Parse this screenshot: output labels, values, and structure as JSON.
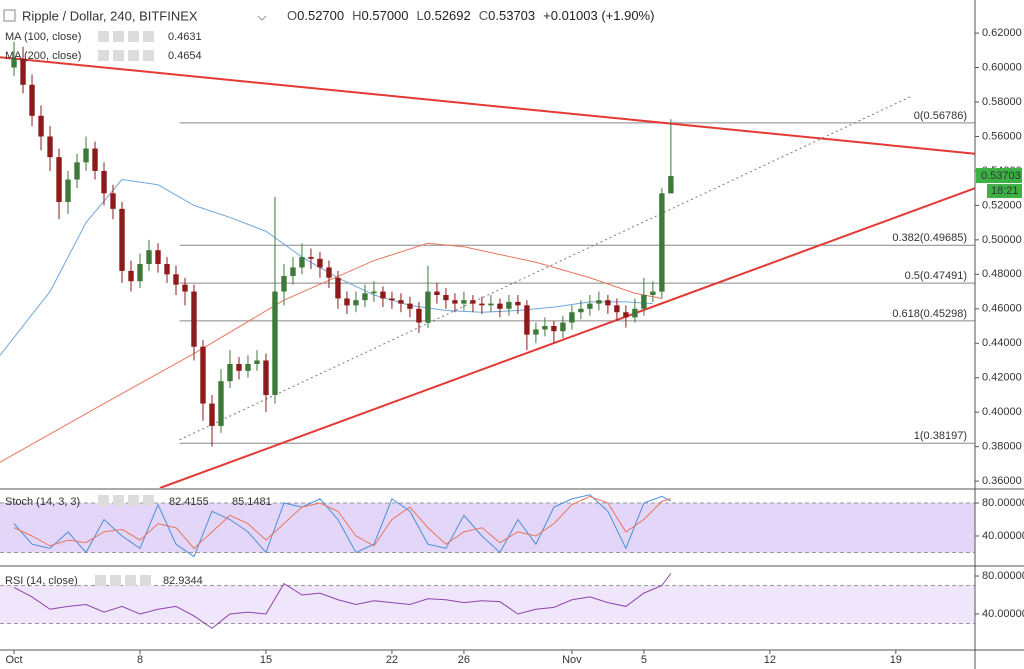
{
  "chart_data": [
    {
      "type": "candlestick",
      "title": "Ripple / Dollar, 240, BITFINEX",
      "ohlc": [
        {
          "key": "O",
          "value": "0.52700"
        },
        {
          "key": "H",
          "value": "0.57000"
        },
        {
          "key": "L",
          "value": "0.52692"
        },
        {
          "key": "C",
          "value": "0.53703"
        }
      ],
      "change": "+0.01003 (+1.90%)",
      "x": [
        0,
        0.5,
        1,
        1.5,
        2,
        2.5,
        3,
        3.5,
        4,
        4.5,
        5,
        5.5,
        6,
        6.5,
        7,
        7.5,
        8,
        8.5,
        9,
        9.5,
        10,
        10.5,
        11,
        11.5,
        12,
        12.5,
        13,
        13.5,
        14,
        14.5,
        15,
        15.5,
        16,
        16.5,
        17,
        17.5,
        18,
        18.5,
        19,
        19.5,
        20,
        20.5,
        21,
        21.5,
        22,
        22.5,
        23,
        23.5,
        24,
        24.5,
        25,
        25.5,
        26,
        26.5,
        27,
        27.5,
        28,
        28.5,
        29,
        29.5,
        30,
        30.5,
        31,
        31.5,
        32,
        32.5,
        33,
        33.5,
        34,
        34.5,
        35,
        35.5,
        36,
        36.5
      ],
      "open": [
        0.6,
        0.605,
        0.59,
        0.572,
        0.56,
        0.548,
        0.522,
        0.535,
        0.545,
        0.553,
        0.54,
        0.527,
        0.518,
        0.482,
        0.476,
        0.486,
        0.494,
        0.486,
        0.48,
        0.474,
        0.47,
        0.438,
        0.405,
        0.392,
        0.418,
        0.428,
        0.424,
        0.428,
        0.43,
        0.41,
        0.47,
        0.479,
        0.484,
        0.49,
        0.489,
        0.484,
        0.478,
        0.466,
        0.462,
        0.465,
        0.469,
        0.47,
        0.466,
        0.465,
        0.463,
        0.46,
        0.452,
        0.47,
        0.468,
        0.465,
        0.463,
        0.465,
        0.463,
        0.462,
        0.463,
        0.46,
        0.464,
        0.462,
        0.445,
        0.448,
        0.45,
        0.447,
        0.452,
        0.458,
        0.46,
        0.463,
        0.465,
        0.462,
        0.458,
        0.455,
        0.46,
        0.468,
        0.47,
        0.527
      ],
      "high": [
        0.615,
        0.612,
        0.596,
        0.578,
        0.566,
        0.553,
        0.54,
        0.55,
        0.56,
        0.557,
        0.545,
        0.532,
        0.522,
        0.488,
        0.492,
        0.5,
        0.498,
        0.49,
        0.485,
        0.478,
        0.474,
        0.442,
        0.41,
        0.425,
        0.436,
        0.432,
        0.433,
        0.436,
        0.434,
        0.525,
        0.486,
        0.49,
        0.498,
        0.495,
        0.493,
        0.488,
        0.482,
        0.47,
        0.47,
        0.474,
        0.476,
        0.473,
        0.47,
        0.469,
        0.467,
        0.464,
        0.485,
        0.475,
        0.472,
        0.469,
        0.47,
        0.468,
        0.467,
        0.468,
        0.466,
        0.468,
        0.468,
        0.465,
        0.452,
        0.455,
        0.453,
        0.456,
        0.462,
        0.465,
        0.468,
        0.47,
        0.468,
        0.466,
        0.462,
        0.466,
        0.478,
        0.476,
        0.53,
        0.57
      ],
      "low": [
        0.595,
        0.585,
        0.566,
        0.552,
        0.54,
        0.512,
        0.515,
        0.53,
        0.54,
        0.535,
        0.52,
        0.512,
        0.475,
        0.47,
        0.472,
        0.482,
        0.481,
        0.475,
        0.468,
        0.462,
        0.43,
        0.395,
        0.38,
        0.388,
        0.414,
        0.419,
        0.42,
        0.424,
        0.4,
        0.405,
        0.462,
        0.474,
        0.48,
        0.483,
        0.478,
        0.472,
        0.46,
        0.457,
        0.458,
        0.461,
        0.464,
        0.461,
        0.46,
        0.458,
        0.455,
        0.446,
        0.449,
        0.463,
        0.46,
        0.458,
        0.459,
        0.458,
        0.457,
        0.458,
        0.455,
        0.456,
        0.457,
        0.436,
        0.44,
        0.444,
        0.44,
        0.443,
        0.448,
        0.454,
        0.456,
        0.459,
        0.457,
        0.453,
        0.449,
        0.452,
        0.456,
        0.464,
        0.466,
        0.52692
      ],
      "close": [
        0.605,
        0.59,
        0.572,
        0.56,
        0.548,
        0.522,
        0.535,
        0.545,
        0.553,
        0.54,
        0.527,
        0.518,
        0.482,
        0.476,
        0.486,
        0.494,
        0.486,
        0.48,
        0.474,
        0.47,
        0.438,
        0.405,
        0.392,
        0.418,
        0.428,
        0.424,
        0.428,
        0.43,
        0.41,
        0.47,
        0.479,
        0.484,
        0.49,
        0.489,
        0.484,
        0.478,
        0.466,
        0.462,
        0.465,
        0.469,
        0.47,
        0.466,
        0.465,
        0.463,
        0.46,
        0.452,
        0.47,
        0.468,
        0.465,
        0.463,
        0.465,
        0.463,
        0.462,
        0.463,
        0.46,
        0.464,
        0.462,
        0.445,
        0.448,
        0.45,
        0.447,
        0.452,
        0.458,
        0.46,
        0.463,
        0.465,
        0.462,
        0.458,
        0.455,
        0.46,
        0.468,
        0.47,
        0.527,
        0.53703
      ],
      "up_color": "#3d7a3a",
      "down_color": "#8e1b1b",
      "series": [
        {
          "name": "MA (100, close)",
          "last_label": "0.4631",
          "color": "#6fa8dc",
          "x": [
            -0.78,
            2,
            4,
            6,
            8,
            10,
            12,
            14,
            16,
            18,
            20,
            22,
            24,
            26,
            28,
            30,
            32,
            34,
            35.5
          ],
          "values": [
            0.433,
            0.47,
            0.51,
            0.535,
            0.532,
            0.52,
            0.513,
            0.505,
            0.49,
            0.478,
            0.468,
            0.462,
            0.459,
            0.458,
            0.459,
            0.461,
            0.464,
            0.464,
            0.463
          ]
        },
        {
          "name": "MA (200, close)",
          "last_label": "0.4654",
          "color": "#e8765f",
          "x": [
            -0.78,
            5,
            10,
            15,
            20,
            23,
            25,
            29,
            32,
            34.5,
            36
          ],
          "values": [
            0.371,
            0.405,
            0.434,
            0.465,
            0.488,
            0.498,
            0.496,
            0.487,
            0.478,
            0.469,
            0.466
          ]
        }
      ],
      "trendlines": [
        {
          "color": "#e53935",
          "style": "solid",
          "x": [
            -0.78,
            53.4
          ],
          "values": [
            0.606,
            0.55
          ]
        },
        {
          "color": "#e53935",
          "style": "solid",
          "x": [
            8.11,
            53.4
          ],
          "values": [
            0.356,
            0.53
          ]
        },
        {
          "color": "#777777",
          "style": "dotted",
          "x": [
            9.2,
            49.8
          ],
          "values": [
            0.384,
            0.583
          ]
        }
      ],
      "fib": {
        "start": 9.2,
        "color": "#888888",
        "levels": [
          {
            "value": 0.56786,
            "label": "0(0.56786)"
          },
          {
            "value": 0.49685,
            "label": "0.382(0.49685)"
          },
          {
            "value": 0.47491,
            "label": "0.5(0.47491)"
          },
          {
            "value": 0.45298,
            "label": "0.618(0.45298)"
          },
          {
            "value": 0.38197,
            "label": "1(0.38197)"
          }
        ]
      },
      "price_tag": {
        "value": 0.53703,
        "label": "0.53703",
        "time": "18:21",
        "color": "#3cb043"
      },
      "xlim": [
        -0.78,
        53.4
      ],
      "xticks": [
        {
          "value": 0,
          "label": "Oct"
        },
        {
          "value": 7,
          "label": "8"
        },
        {
          "value": 14,
          "label": "15"
        },
        {
          "value": 21,
          "label": "22"
        },
        {
          "value": 25,
          "label": "26"
        },
        {
          "value": 31,
          "label": "Nov"
        },
        {
          "value": 35,
          "label": "5"
        },
        {
          "value": 42,
          "label": "12"
        },
        {
          "value": 49,
          "label": "19"
        }
      ],
      "ylim": [
        0.356,
        0.6392
      ],
      "yticks": [
        {
          "value": 0.36,
          "label": "0.36000"
        },
        {
          "value": 0.38,
          "label": "0.38000"
        },
        {
          "value": 0.4,
          "label": "0.40000"
        },
        {
          "value": 0.42,
          "label": "0.42000"
        },
        {
          "value": 0.44,
          "label": "0.44000"
        },
        {
          "value": 0.46,
          "label": "0.46000"
        },
        {
          "value": 0.48,
          "label": "0.48000"
        },
        {
          "value": 0.5,
          "label": "0.50000"
        },
        {
          "value": 0.52,
          "label": "0.52000"
        },
        {
          "value": 0.54,
          "label": "0.54000"
        },
        {
          "value": 0.56,
          "label": "0.56000"
        },
        {
          "value": 0.58,
          "label": "0.58000"
        },
        {
          "value": 0.6,
          "label": "0.60000"
        },
        {
          "value": 0.62,
          "label": "0.62000"
        }
      ]
    },
    {
      "type": "line",
      "title": "Stoch (14, 3, 3)",
      "band": [
        20,
        80
      ],
      "band_color": "#e3d6f8",
      "x": [
        0,
        1,
        2,
        3,
        4,
        5,
        6,
        7,
        8,
        9,
        10,
        11,
        12,
        13,
        14,
        15,
        16,
        17,
        18,
        19,
        20,
        21,
        22,
        23,
        24,
        25,
        26,
        27,
        28,
        29,
        30,
        31,
        32,
        33,
        34,
        35,
        36,
        36.5
      ],
      "series": [
        {
          "last_label": "82.4155",
          "color": "#4a90d9",
          "values": [
            55,
            30,
            25,
            45,
            20,
            60,
            40,
            25,
            78,
            30,
            15,
            70,
            60,
            45,
            20,
            80,
            75,
            85,
            60,
            20,
            30,
            85,
            70,
            30,
            25,
            65,
            40,
            20,
            60,
            30,
            75,
            85,
            90,
            70,
            25,
            80,
            88,
            82.4155
          ]
        },
        {
          "last_label": "85.1481",
          "color": "#e8765f",
          "values": [
            50,
            40,
            28,
            35,
            32,
            45,
            48,
            35,
            55,
            50,
            25,
            45,
            65,
            55,
            35,
            55,
            75,
            80,
            70,
            40,
            28,
            60,
            75,
            50,
            30,
            45,
            50,
            32,
            45,
            40,
            55,
            78,
            88,
            80,
            45,
            60,
            82,
            85.1481
          ]
        }
      ],
      "xlim": [
        -0.78,
        53.4
      ],
      "ylim": [
        4.8,
        95.8
      ],
      "yticks": [
        {
          "value": 80,
          "label": "80.00000"
        },
        {
          "value": 40,
          "label": "40.00000"
        }
      ]
    },
    {
      "type": "line",
      "title": "RSI (14, close)",
      "band": [
        30,
        70
      ],
      "band_color": "#efe6fb",
      "x": [
        0,
        1,
        2,
        3,
        4,
        5,
        6,
        7,
        8,
        9,
        10,
        11,
        12,
        13,
        14,
        15,
        16,
        17,
        18,
        19,
        20,
        21,
        22,
        23,
        24,
        25,
        26,
        27,
        28,
        29,
        30,
        31,
        32,
        33,
        34,
        35,
        36,
        36.5
      ],
      "series": [
        {
          "last_label": "82.9344",
          "color": "#8e44ad",
          "values": [
            68,
            58,
            45,
            48,
            50,
            42,
            48,
            40,
            45,
            48,
            38,
            25,
            40,
            42,
            40,
            72,
            60,
            62,
            55,
            50,
            54,
            52,
            50,
            56,
            55,
            52,
            54,
            53,
            40,
            45,
            47,
            55,
            58,
            52,
            48,
            62,
            70,
            82.9344
          ]
        }
      ],
      "xlim": [
        -0.78,
        53.4
      ],
      "ylim": [
        2.1,
        89.5
      ],
      "yticks": [
        {
          "value": 80,
          "label": "80.00000"
        },
        {
          "value": 40,
          "label": "40.00000"
        }
      ]
    }
  ]
}
